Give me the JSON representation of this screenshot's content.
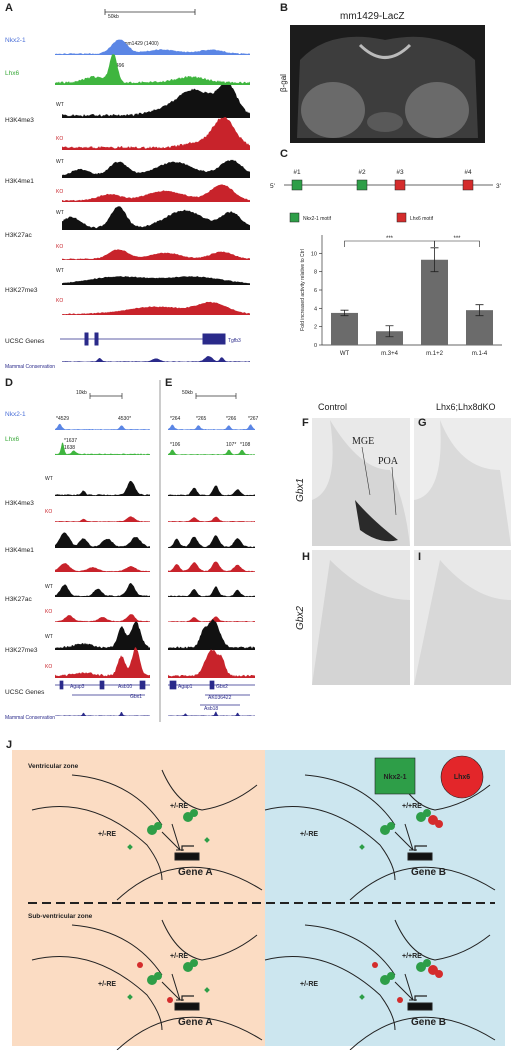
{
  "panel_labels": [
    "A",
    "B",
    "C",
    "D",
    "E",
    "F",
    "G",
    "H",
    "I",
    "J"
  ],
  "panel_a": {
    "scale": "50kb",
    "tracks": [
      "Nkx2-1",
      "Lhx6",
      "H3K4me3",
      "H3K4me1",
      "H3K27ac",
      "H3K27me3"
    ],
    "wt": "WT",
    "ko": "KO",
    "peaks": [
      "* mm1429 (1400)",
      "*496"
    ],
    "genes_label": "UCSC Genes",
    "gene": "Tgfb3",
    "conservation": "Mammal Conservation"
  },
  "panel_b": {
    "title": "mm1429-LacZ",
    "stain": "β-gal"
  },
  "panel_c": {
    "five": "5'",
    "three": "3'",
    "sites": [
      "#1",
      "#2",
      "#3",
      "#4"
    ],
    "legend": [
      "Nkx2-1 motif",
      "Lhx6 motif"
    ]
  },
  "chart_data": {
    "type": "bar",
    "ylabel": "Fold increased activity relative to Ctrl",
    "categories": [
      "WT",
      "m.3+4",
      "m.1+2",
      "m.1-4"
    ],
    "values": [
      3.5,
      1.5,
      9.3,
      3.8
    ],
    "errors": [
      0.3,
      0.6,
      1.3,
      0.6
    ],
    "color": "#6b6b6b",
    "ylim": [
      0,
      12
    ],
    "yticks": [
      0,
      2,
      4,
      6,
      8,
      10
    ],
    "significance": [
      "***",
      "***"
    ]
  },
  "panel_d": {
    "scale": "10kb",
    "nkx_peaks": [
      "*4529",
      "4530*"
    ],
    "lhx_peaks": [
      "*1637",
      "*1638"
    ],
    "genes": [
      "Agap3",
      "Asb10",
      "Gbx1"
    ]
  },
  "panel_e": {
    "scale": "50kb",
    "nkx_peaks": [
      "*264",
      "*265",
      "*266",
      "*267"
    ],
    "lhx_peaks": [
      "*106",
      "107*",
      "*108"
    ],
    "genes": [
      "Agap1",
      "Gbx2",
      "AK036422",
      "Asb18"
    ]
  },
  "panel_fi": {
    "columns": [
      "Control",
      "Lhx6;Lhx8dKO"
    ],
    "regions": [
      "MGE",
      "POA"
    ],
    "genes": [
      "Gbx1",
      "Gbx2"
    ]
  },
  "panel_j": {
    "zones": [
      "Ventricular zone",
      "Sub-ventricular zone"
    ],
    "factors": [
      "Nkx2-1",
      "Lhx6"
    ],
    "re": [
      "+/-RE",
      "+/+RE"
    ],
    "genes": [
      "Gene A",
      "Gene B"
    ]
  }
}
